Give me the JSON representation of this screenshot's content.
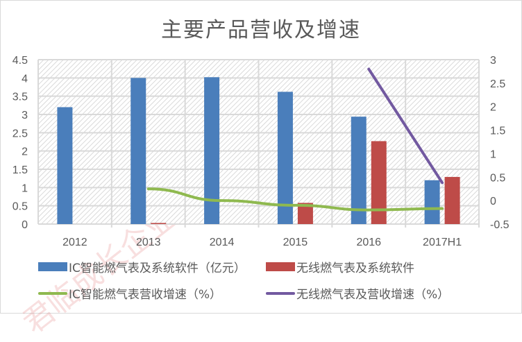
{
  "title": "主要产品营收及增速",
  "watermark": "君临成长企业服务平台",
  "colors": {
    "ic_bar": "#4a7ebb",
    "wireless_bar": "#be4b48",
    "ic_growth_line": "#8fb94f",
    "wireless_growth_line": "#7259a0",
    "grid": "#d9d9d9",
    "axis_text": "#595959"
  },
  "legend": {
    "items": [
      {
        "label": "IC智能燃气表及系统软件（亿元）",
        "kind": "bar",
        "color": "#4a7ebb"
      },
      {
        "label": "无线燃气表及系统软件",
        "kind": "bar",
        "color": "#be4b48"
      },
      {
        "label": "IC智能燃气表营收增速（%）",
        "kind": "line",
        "color": "#8fb94f"
      },
      {
        "label": "无线燃气表及营收增速（%）",
        "kind": "line",
        "color": "#7259a0"
      }
    ]
  },
  "chart_data": {
    "type": "bar",
    "title": "主要产品营收及增速",
    "xlabel": "",
    "ylabel": "",
    "categories": [
      "2012",
      "2013",
      "2014",
      "2015",
      "2016",
      "2017H1"
    ],
    "series": [
      {
        "name": "IC智能燃气表及系统软件（亿元）",
        "type": "bar",
        "axis": "left",
        "values": [
          3.2,
          4.0,
          4.02,
          3.62,
          2.94,
          1.2
        ]
      },
      {
        "name": "无线燃气表及系统软件",
        "type": "bar",
        "axis": "left",
        "values": [
          null,
          0.03,
          null,
          0.58,
          2.27,
          1.29
        ]
      },
      {
        "name": "IC智能燃气表营收增速（%）",
        "type": "line",
        "axis": "right",
        "values": [
          null,
          0.25,
          0.0,
          -0.1,
          -0.2,
          -0.17
        ]
      },
      {
        "name": "无线燃气表及营收增速（%）",
        "type": "line",
        "axis": "right",
        "values": [
          null,
          null,
          null,
          null,
          2.8,
          0.38
        ]
      }
    ],
    "left_axis": {
      "ylim": [
        0,
        4.5
      ],
      "ticks": [
        "0",
        "0.5",
        "1",
        "1.5",
        "2",
        "2.5",
        "3",
        "3.5",
        "4",
        "4.5"
      ]
    },
    "right_axis": {
      "ylim": [
        -0.5,
        3
      ],
      "ticks": [
        "-0.5",
        "0",
        "0.5",
        "1",
        "1.5",
        "2",
        "2.5",
        "3"
      ]
    },
    "grid": true,
    "legend_position": "bottom"
  }
}
